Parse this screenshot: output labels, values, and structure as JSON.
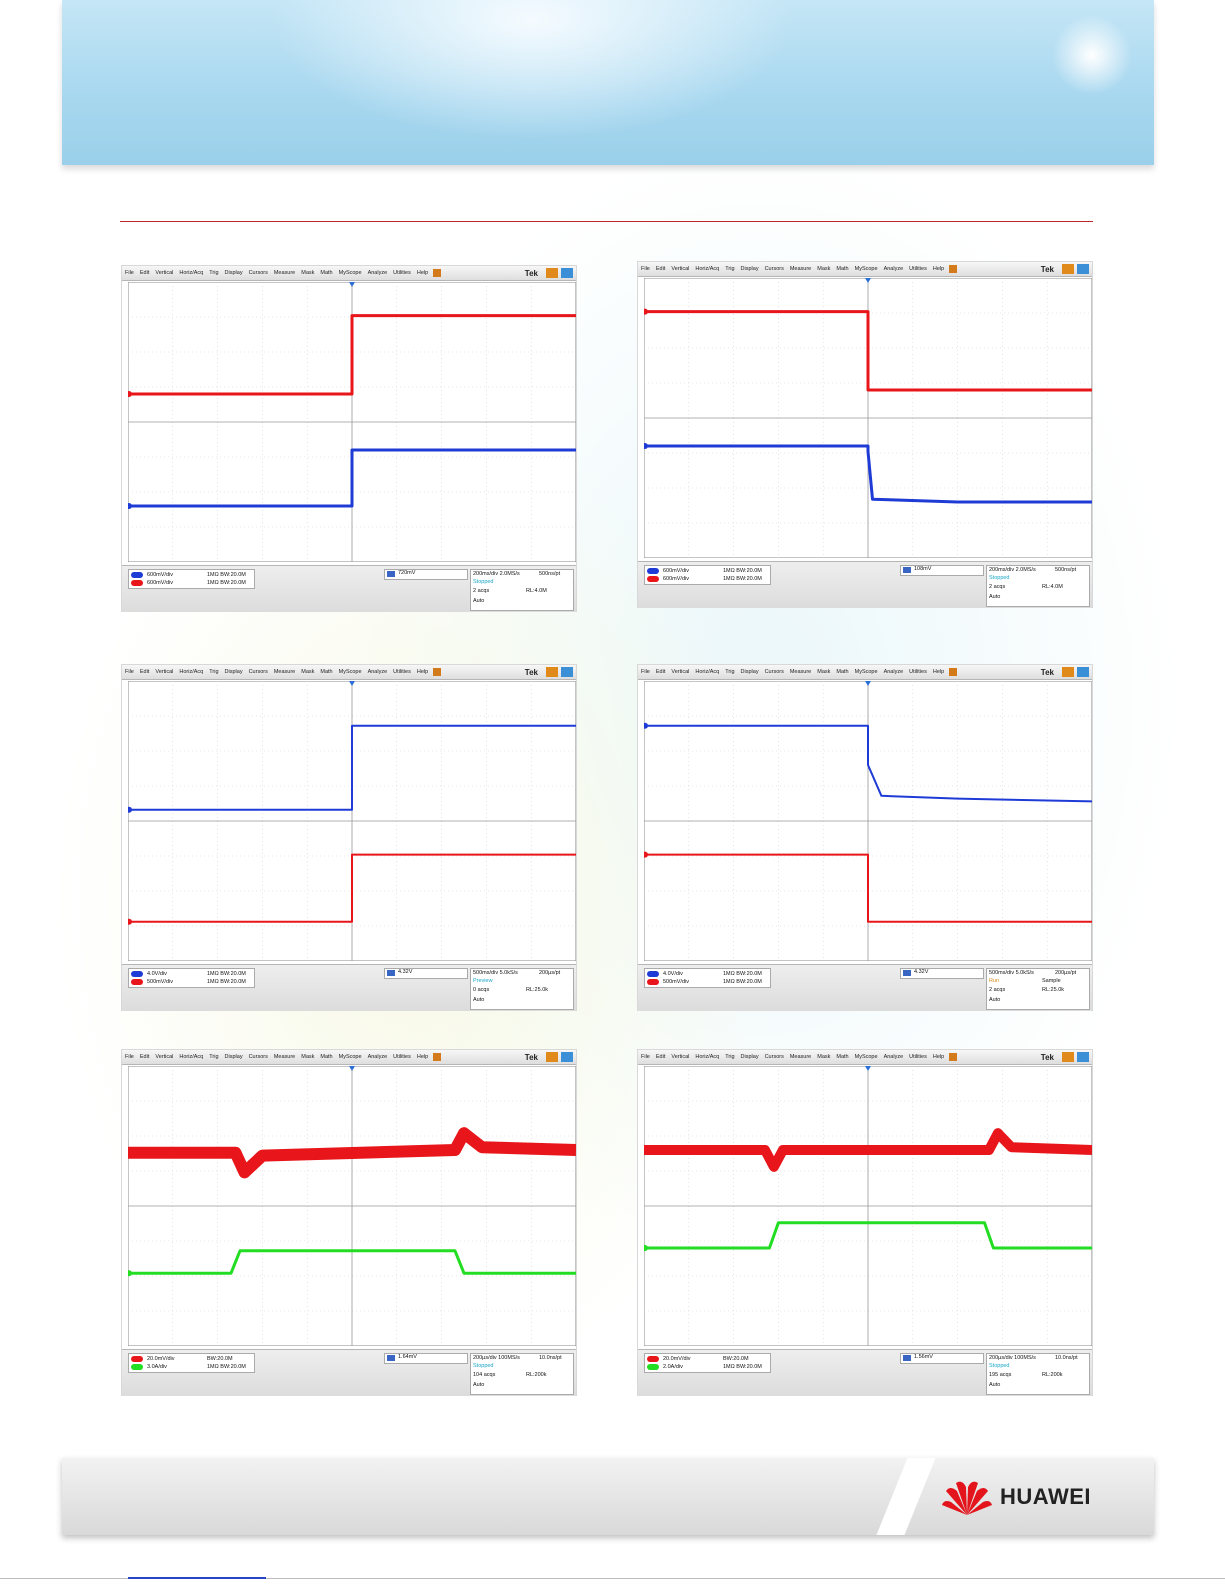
{
  "page": {
    "logo_text": "HUAWEI"
  },
  "menu": [
    "File",
    "Edit",
    "Vertical",
    "Horiz/Acq",
    "Trig",
    "Display",
    "Cursors",
    "Measure",
    "Mask",
    "Math",
    "MyScope",
    "Analyze",
    "Utilities",
    "Help"
  ],
  "brand": "Tek",
  "colors": {
    "ch1_blue": "#1f3bd6",
    "ch2_red": "#e8161a",
    "ch3_green": "#22dd22",
    "header_rule": "#c0282d"
  },
  "screenshots": [
    {
      "ch_rows": [
        {
          "label": "600mV/div",
          "color": "blue",
          "coupling": "1MΩ  BW:20.0M"
        },
        {
          "label": "600mV/div",
          "color": "red",
          "coupling": "1MΩ  BW:20.0M"
        }
      ],
      "trigger": "720mV",
      "acq": [
        "200ms/div  2.0MS/s",
        "500ns/pt",
        "Stopped",
        "2 acqs",
        "RL:4.0M",
        "Auto"
      ]
    },
    {
      "ch_rows": [
        {
          "label": "600mV/div",
          "color": "blue",
          "coupling": "1MΩ  BW:20.0M"
        },
        {
          "label": "600mV/div",
          "color": "red",
          "coupling": "1MΩ  BW:20.0M"
        }
      ],
      "trigger": "108mV",
      "acq": [
        "200ms/div  2.0MS/s",
        "500ns/pt",
        "Stopped",
        "2 acqs",
        "RL:4.0M",
        "Auto"
      ]
    },
    {
      "ch_rows": [
        {
          "label": "4.0V/div",
          "color": "blue",
          "coupling": "1MΩ  BW:20.0M"
        },
        {
          "label": "500mV/div",
          "color": "red",
          "coupling": "1MΩ  BW:20.0M"
        }
      ],
      "trigger": "4.32V",
      "acq": [
        "500ms/div  5.0kS/s",
        "200µs/pt",
        "Preview",
        "0 acqs",
        "RL:25.0k",
        "Auto"
      ]
    },
    {
      "ch_rows": [
        {
          "label": "4.0V/div",
          "color": "blue",
          "coupling": "1MΩ  BW:20.0M"
        },
        {
          "label": "500mV/div",
          "color": "red",
          "coupling": "1MΩ  BW:20.0M"
        }
      ],
      "trigger": "4.32V",
      "acq": [
        "500ms/div  5.0kS/s",
        "200µs/pt",
        "Run",
        "Sample",
        "2 acqs",
        "RL:25.0k",
        "Auto"
      ]
    },
    {
      "ch_rows": [
        {
          "label": "20.0mV/div",
          "color": "red",
          "coupling": "BW:20.0M"
        },
        {
          "label": "3.0A/div",
          "color": "green",
          "coupling": "1MΩ  BW:20.0M"
        }
      ],
      "trigger": "1.64mV",
      "acq": [
        "200µs/div  100MS/s",
        "10.0ns/pt",
        "Stopped",
        "104 acqs",
        "RL:200k",
        "Auto"
      ]
    },
    {
      "ch_rows": [
        {
          "label": "20.0mV/div",
          "color": "red",
          "coupling": "BW:20.0M"
        },
        {
          "label": "2.0A/div",
          "color": "green",
          "coupling": "1MΩ  BW:20.0M"
        }
      ],
      "trigger": "1.56mV",
      "acq": [
        "200µs/div  100MS/s",
        "10.0ns/pt",
        "Stopped",
        "195 acqs",
        "RL:200k",
        "Auto"
      ]
    }
  ]
}
